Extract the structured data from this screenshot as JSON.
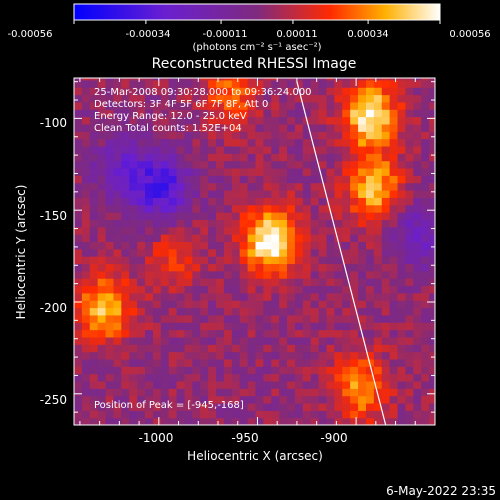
{
  "colorbar": {
    "ticks": [
      "-0.00056",
      "-0.00034",
      "-0.00011",
      "0.00011",
      "0.00034",
      "0.00056"
    ],
    "unit_label": "(photons cm⁻² s⁻¹ asec⁻²)",
    "range": [
      -0.00056,
      0.00056
    ]
  },
  "annotations": {
    "time": "25-Mar-2008 09:30:28.000 to 09:36:24.000",
    "detectors": "Detectors: 3F 4F 5F 6F 7F 8F, Att 0",
    "energy": "Energy Range: 12.0 - 25.0 keV",
    "clean": "Clean     Total counts: 1.52E+04",
    "peak": "Position of Peak = [-945,-168]"
  },
  "footer": {
    "timestamp": "6-May-2022 23:35"
  },
  "chart_data": {
    "type": "heatmap",
    "title": "Reconstructed RHESSI Image",
    "xlabel": "Heliocentric X (arcsec)",
    "ylabel": "Heliocentric Y (arcsec)",
    "xlim": [
      -1043,
      -860
    ],
    "ylim": [
      -267,
      -78
    ],
    "x_ticks": [
      -1000,
      -950,
      -900
    ],
    "y_ticks": [
      -100,
      -150,
      -200,
      -250
    ],
    "x_tick_labels": [
      "-1000",
      "-950",
      "-900"
    ],
    "y_tick_labels": [
      "-100",
      "-150",
      "-200",
      "-250"
    ],
    "peak_position": [
      -945,
      -168
    ],
    "colorscale": "red-temperature (diverging, blue negative to white positive)",
    "bright_sources": [
      {
        "x": -945,
        "y": -168,
        "level": 0.00056
      },
      {
        "x": -895,
        "y": -100,
        "level": 0.0005
      },
      {
        "x": -893,
        "y": -140,
        "level": 0.0004
      },
      {
        "x": -1030,
        "y": -205,
        "level": 0.0004
      },
      {
        "x": -965,
        "y": -88,
        "level": 0.00026
      },
      {
        "x": -900,
        "y": -248,
        "level": 0.00035
      },
      {
        "x": -995,
        "y": -178,
        "level": 0.00018
      }
    ],
    "dim_sources": [
      {
        "x": -1000,
        "y": -140,
        "level": -0.0004
      },
      {
        "x": -1020,
        "y": -130,
        "level": -0.00025
      },
      {
        "x": -870,
        "y": -165,
        "level": -0.00025
      }
    ],
    "limb_line": [
      [
        -930,
        -80
      ],
      [
        -885,
        -267
      ]
    ]
  }
}
